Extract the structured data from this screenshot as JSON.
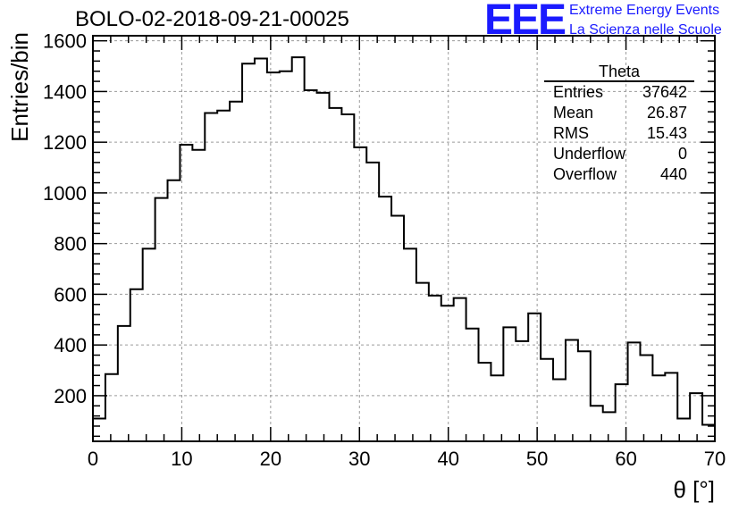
{
  "chart_data": {
    "type": "histogram",
    "title": "BOLO-02-2018-09-21-00025",
    "xlabel": "θ [°]",
    "ylabel": "Entries/bin",
    "xlim": [
      0,
      70
    ],
    "ylim": [
      20,
      1620
    ],
    "grid": true,
    "bin_width": 1.4,
    "bin_edges_start": 0,
    "x_ticks": [
      0,
      10,
      20,
      30,
      40,
      50,
      60,
      70
    ],
    "y_ticks": [
      200,
      400,
      600,
      800,
      1000,
      1200,
      1400,
      1600
    ],
    "values": [
      110,
      285,
      475,
      620,
      780,
      980,
      1050,
      1190,
      1170,
      1315,
      1325,
      1360,
      1510,
      1530,
      1475,
      1480,
      1535,
      1405,
      1395,
      1335,
      1310,
      1180,
      1120,
      985,
      910,
      780,
      645,
      595,
      555,
      585,
      465,
      330,
      280,
      470,
      415,
      525,
      345,
      265,
      420,
      375,
      160,
      135,
      245,
      410,
      360,
      280,
      290,
      110,
      210,
      85
    ]
  },
  "stats": {
    "title": "Theta",
    "rows": [
      {
        "label": "Entries",
        "value": "37642"
      },
      {
        "label": "Mean",
        "value": "26.87"
      },
      {
        "label": "RMS",
        "value": "15.43"
      },
      {
        "label": "Underflow",
        "value": "0"
      },
      {
        "label": "Overflow",
        "value": "440"
      }
    ]
  },
  "logo": {
    "mark": "EEE",
    "line1": "Extreme Energy Events",
    "line2": "La Scienza nelle Scuole"
  }
}
